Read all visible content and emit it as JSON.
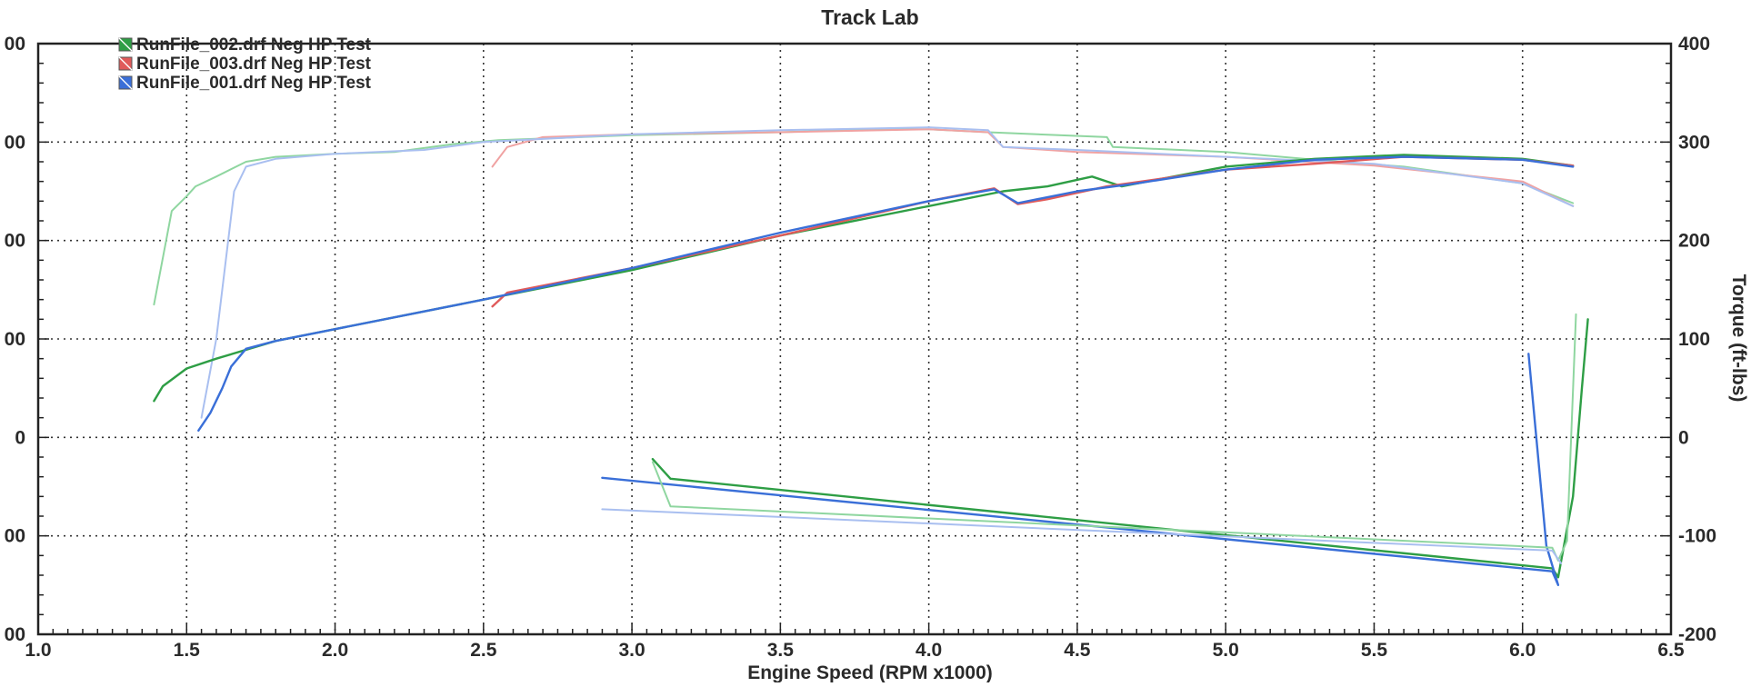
{
  "chart_data": {
    "type": "line",
    "title": "Track Lab",
    "xlabel": "Engine Speed (RPM x1000)",
    "ylabel_left": "",
    "ylabel_right": "Torque (ft-lbs)",
    "xlim": [
      1.0,
      6.5
    ],
    "ylim": [
      -200,
      400
    ],
    "x_ticks": [
      "1.0",
      "1.5",
      "2.0",
      "2.5",
      "3.0",
      "3.5",
      "4.0",
      "4.5",
      "5.0",
      "5.5",
      "6.0",
      "6.5"
    ],
    "y_ticks": [
      "400",
      "300",
      "200",
      "100",
      "0",
      "-100",
      "-200"
    ],
    "left_tick_fragments": [
      "00",
      "00",
      "00",
      "00",
      "0",
      "00",
      "00"
    ],
    "grid": true,
    "legend_position": "top-left",
    "legend": [
      {
        "label": "RunFile_002.drf Neg HP Test",
        "color": "#2e9e45"
      },
      {
        "label": "RunFile_003.drf Neg HP Test",
        "color": "#e05a5a"
      },
      {
        "label": "RunFile_001.drf Neg HP Test",
        "color": "#3a6fd8"
      }
    ],
    "series": [
      {
        "run": "002",
        "measure": "torque",
        "color": "#8fd6a0",
        "x": [
          1.39,
          1.45,
          1.5,
          1.53,
          1.6,
          1.7,
          1.8,
          2.0,
          2.2,
          2.4,
          2.55,
          3.0,
          3.5,
          3.8,
          4.0,
          4.2,
          4.6,
          4.62,
          5.0,
          5.3,
          5.6,
          6.0,
          6.17
        ],
        "y": [
          135,
          230,
          245,
          255,
          265,
          280,
          285,
          288,
          290,
          298,
          302,
          307,
          310,
          313,
          313,
          310,
          305,
          295,
          290,
          282,
          275,
          258,
          238
        ]
      },
      {
        "run": "003",
        "measure": "torque",
        "color": "#f0a2a2",
        "x": [
          2.53,
          2.58,
          2.7,
          3.0,
          3.5,
          4.0,
          4.2,
          4.25,
          4.5,
          5.0,
          5.5,
          6.0,
          6.17
        ],
        "y": [
          275,
          295,
          305,
          308,
          310,
          313,
          310,
          295,
          290,
          285,
          276,
          260,
          235
        ]
      },
      {
        "run": "001",
        "measure": "torque",
        "color": "#a9bff0",
        "x": [
          1.55,
          1.6,
          1.64,
          1.66,
          1.7,
          1.8,
          2.0,
          2.3,
          2.5,
          3.0,
          3.5,
          4.0,
          4.2,
          4.25,
          4.5,
          5.0,
          5.5,
          6.0,
          6.17
        ],
        "y": [
          20,
          100,
          200,
          250,
          275,
          283,
          288,
          292,
          300,
          308,
          312,
          315,
          312,
          295,
          292,
          285,
          278,
          258,
          235
        ]
      },
      {
        "run": "002",
        "measure": "power",
        "color": "#2e9e45",
        "x": [
          1.39,
          1.42,
          1.5,
          1.6,
          1.8,
          2.0,
          2.5,
          3.0,
          3.5,
          4.0,
          4.25,
          4.4,
          4.55,
          4.65,
          5.0,
          5.3,
          5.6,
          6.0,
          6.17
        ],
        "y": [
          37,
          52,
          70,
          80,
          98,
          110,
          140,
          170,
          205,
          235,
          250,
          255,
          265,
          255,
          275,
          283,
          287,
          283,
          276
        ]
      },
      {
        "run": "003",
        "measure": "power",
        "color": "#e05a5a",
        "x": [
          2.53,
          2.58,
          3.0,
          3.5,
          4.0,
          4.22,
          4.3,
          4.4,
          4.6,
          5.0,
          5.3,
          5.6,
          6.0,
          6.17
        ],
        "y": [
          133,
          147,
          172,
          205,
          240,
          253,
          237,
          242,
          255,
          272,
          278,
          285,
          282,
          276
        ]
      },
      {
        "run": "001",
        "measure": "power",
        "color": "#3a6fd8",
        "x": [
          1.54,
          1.58,
          1.62,
          1.65,
          1.7,
          1.8,
          2.0,
          2.5,
          3.0,
          3.5,
          4.0,
          4.22,
          4.3,
          4.5,
          4.7,
          5.0,
          5.3,
          5.6,
          6.0,
          6.17
        ],
        "y": [
          7,
          25,
          50,
          72,
          90,
          98,
          110,
          140,
          172,
          208,
          240,
          252,
          238,
          250,
          258,
          272,
          282,
          285,
          282,
          275
        ]
      },
      {
        "run": "002",
        "measure": "neg_power",
        "color": "#2e9e45",
        "x": [
          3.07,
          3.13,
          6.1,
          6.12,
          6.17,
          6.2,
          6.22
        ],
        "y": [
          -22,
          -42,
          -133,
          -142,
          -60,
          50,
          120
        ]
      },
      {
        "run": "001",
        "measure": "neg_power",
        "color": "#3a6fd8",
        "x": [
          2.9,
          6.1,
          6.12,
          6.08,
          6.02
        ],
        "y": [
          -41,
          -136,
          -150,
          -110,
          85
        ]
      },
      {
        "run": "002",
        "measure": "neg_torque",
        "color": "#8fd6a0",
        "x": [
          3.07,
          3.13,
          6.1,
          6.12,
          6.15,
          6.18
        ],
        "y": [
          -25,
          -70,
          -112,
          -125,
          -105,
          125
        ]
      },
      {
        "run": "001",
        "measure": "neg_torque",
        "color": "#a9bff0",
        "x": [
          2.9,
          6.1,
          6.13
        ],
        "y": [
          -73,
          -115,
          -128
        ]
      }
    ]
  }
}
